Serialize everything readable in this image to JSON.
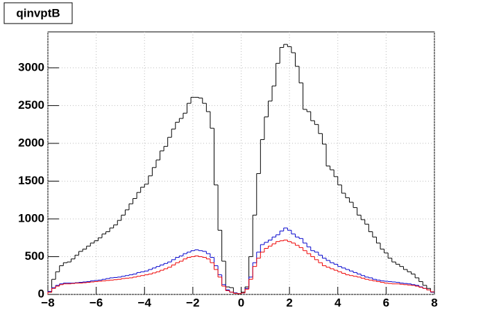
{
  "chart_data": {
    "type": "histogram",
    "title": "qinvptB",
    "bins": [
      -8,
      -7.84,
      -7.68,
      -7.52,
      -7.36,
      -7.2,
      -7.04,
      -6.88,
      -6.72,
      -6.56,
      -6.4,
      -6.24,
      -6.08,
      -5.92,
      -5.76,
      -5.6,
      -5.44,
      -5.28,
      -5.12,
      -4.96,
      -4.8,
      -4.64,
      -4.48,
      -4.32,
      -4.16,
      -4,
      -3.84,
      -3.68,
      -3.52,
      -3.36,
      -3.2,
      -3.04,
      -2.88,
      -2.72,
      -2.56,
      -2.4,
      -2.24,
      -2.08,
      -1.92,
      -1.76,
      -1.6,
      -1.44,
      -1.28,
      -1.12,
      -0.96,
      -0.8,
      -0.64,
      -0.48,
      -0.32,
      -0.16,
      0,
      0.16,
      0.32,
      0.48,
      0.64,
      0.8,
      0.96,
      1.12,
      1.28,
      1.44,
      1.6,
      1.76,
      1.92,
      2.08,
      2.24,
      2.4,
      2.56,
      2.72,
      2.88,
      3.04,
      3.2,
      3.36,
      3.52,
      3.68,
      3.84,
      4,
      4.16,
      4.32,
      4.48,
      4.64,
      4.8,
      4.96,
      5.12,
      5.28,
      5.44,
      5.6,
      5.76,
      5.92,
      6.08,
      6.24,
      6.4,
      6.56,
      6.72,
      6.88,
      7.04,
      7.2,
      7.36,
      7.52,
      7.68,
      7.84,
      8
    ],
    "series": [
      {
        "color": "#000000",
        "values": [
          30,
          200,
          300,
          380,
          420,
          430,
          470,
          520,
          570,
          600,
          640,
          680,
          710,
          750,
          800,
          830,
          880,
          920,
          980,
          1050,
          1120,
          1200,
          1270,
          1350,
          1420,
          1460,
          1570,
          1680,
          1780,
          1900,
          1960,
          2080,
          2190,
          2280,
          2330,
          2400,
          2530,
          2610,
          2610,
          2600,
          2530,
          2420,
          2200,
          1450,
          850,
          440,
          100,
          90,
          20,
          10,
          30,
          100,
          500,
          1050,
          1600,
          2050,
          2350,
          2560,
          2760,
          3060,
          3270,
          3310,
          3280,
          3200,
          3020,
          2800,
          2450,
          2420,
          2300,
          2250,
          2130,
          1990,
          1700,
          1650,
          1560,
          1450,
          1340,
          1280,
          1220,
          1150,
          1050,
          990,
          930,
          830,
          760,
          680,
          600,
          550,
          480,
          430,
          400,
          370,
          330,
          300,
          270,
          220,
          170,
          120,
          80,
          30
        ]
      },
      {
        "color": "#0000cc",
        "values": [
          40,
          90,
          120,
          140,
          150,
          150,
          150,
          155,
          160,
          165,
          170,
          180,
          185,
          190,
          200,
          210,
          220,
          225,
          230,
          240,
          250,
          260,
          270,
          290,
          300,
          310,
          330,
          350,
          370,
          390,
          410,
          430,
          460,
          490,
          510,
          540,
          560,
          580,
          590,
          580,
          570,
          540,
          490,
          380,
          260,
          130,
          60,
          30,
          20,
          10,
          20,
          80,
          230,
          420,
          560,
          660,
          690,
          720,
          760,
          790,
          840,
          880,
          850,
          800,
          760,
          740,
          680,
          630,
          580,
          560,
          520,
          480,
          450,
          420,
          400,
          370,
          350,
          330,
          310,
          290,
          270,
          250,
          230,
          220,
          200,
          190,
          180,
          175,
          170,
          165,
          160,
          150,
          145,
          140,
          130,
          120,
          100,
          80,
          60,
          30
        ]
      },
      {
        "color": "#ee0000",
        "values": [
          30,
          80,
          110,
          130,
          140,
          140,
          145,
          150,
          150,
          155,
          160,
          165,
          170,
          175,
          180,
          185,
          190,
          195,
          200,
          210,
          215,
          220,
          230,
          240,
          250,
          260,
          270,
          285,
          300,
          320,
          340,
          360,
          390,
          420,
          440,
          470,
          490,
          500,
          510,
          500,
          490,
          470,
          420,
          330,
          230,
          110,
          50,
          30,
          15,
          10,
          20,
          70,
          200,
          370,
          480,
          560,
          610,
          640,
          670,
          700,
          710,
          720,
          700,
          680,
          650,
          620,
          580,
          540,
          500,
          460,
          420,
          380,
          360,
          340,
          320,
          300,
          280,
          260,
          250,
          240,
          230,
          215,
          200,
          190,
          180,
          170,
          160,
          150,
          145,
          140,
          140,
          135,
          130,
          125,
          120,
          110,
          95,
          80,
          60,
          35
        ]
      }
    ],
    "xlim": [
      -8,
      8
    ],
    "xticks": [
      {
        "value": -8,
        "label": "−8"
      },
      {
        "value": -6,
        "label": "−6"
      },
      {
        "value": -4,
        "label": "−4"
      },
      {
        "value": -2,
        "label": "−2"
      },
      0,
      2,
      4,
      6,
      8
    ],
    "ylim": [
      0,
      3476
    ],
    "yticks": [
      0,
      500,
      1000,
      1500,
      2000,
      2500,
      3000
    ],
    "grid": true
  }
}
